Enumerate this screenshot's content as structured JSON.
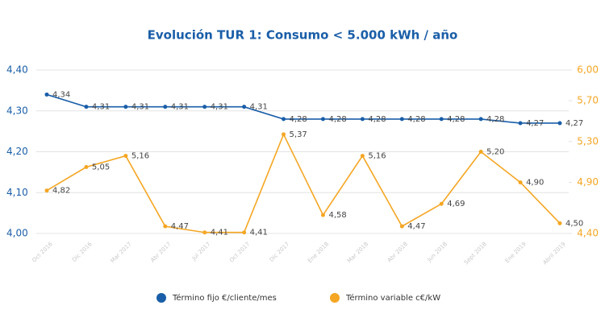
{
  "chart_data": {
    "type": "line",
    "title": "Evolución TUR 1: Consumo < 5.000 kWh / año",
    "categories": [
      "Oct 2016",
      "Dic 2016",
      "Mar 2017",
      "Abr 2017",
      "Jul 2017",
      "Oct 2017",
      "Dic 2017",
      "Ene 2018",
      "Mar 2018",
      "Abr 2018",
      "Jun 2018",
      "Sept 2018",
      "Ene 2019",
      "Abril 2019"
    ],
    "series": [
      {
        "name": "Término fijo €/cliente/mes",
        "color": "#1a5ea8",
        "values": [
          4.34,
          4.31,
          4.31,
          4.31,
          4.31,
          4.31,
          4.28,
          4.28,
          4.28,
          4.28,
          4.28,
          4.28,
          4.27,
          4.27
        ],
        "value_labels": [
          "4,34",
          "4,31",
          "4,31",
          "4,31",
          "4,31",
          "4,31",
          "4,28",
          "4,28",
          "4,28",
          "4,28",
          "4,28",
          "4,28",
          "4,27",
          "4,27"
        ]
      },
      {
        "name": "Término variable c€/kW",
        "color": "#f5a623",
        "axis": "y2",
        "values": [
          4.82,
          5.05,
          5.16,
          4.47,
          4.41,
          4.41,
          5.37,
          4.58,
          5.16,
          4.47,
          4.69,
          5.2,
          4.9,
          4.5
        ],
        "value_labels": [
          "4,82",
          "5,05",
          "5,16",
          "4,47",
          "4,41",
          "4,41",
          "5,37",
          "4,58",
          "5,16",
          "4,47",
          "4,69",
          "5,20",
          "4,90",
          "4,50"
        ]
      }
    ],
    "ylim": [
      4.0,
      4.4
    ],
    "yticks": [
      {
        "value": 4.0,
        "label": "4,00"
      },
      {
        "value": 4.1,
        "label": "4,10"
      },
      {
        "value": 4.2,
        "label": "4,20"
      },
      {
        "value": 4.3,
        "label": "4,30"
      },
      {
        "value": 4.4,
        "label": "4,40"
      }
    ],
    "y2lim": [
      4.4,
      6.0
    ],
    "y2ticks": [
      {
        "value": 4.4,
        "label": "4,40"
      },
      {
        "value": 4.9,
        "label": "4,90"
      },
      {
        "value": 5.3,
        "label": "5,30"
      },
      {
        "value": 5.7,
        "label": "5,70"
      },
      {
        "value": 6.0,
        "label": "6,00"
      }
    ],
    "grid": true,
    "legend": "bottom"
  }
}
